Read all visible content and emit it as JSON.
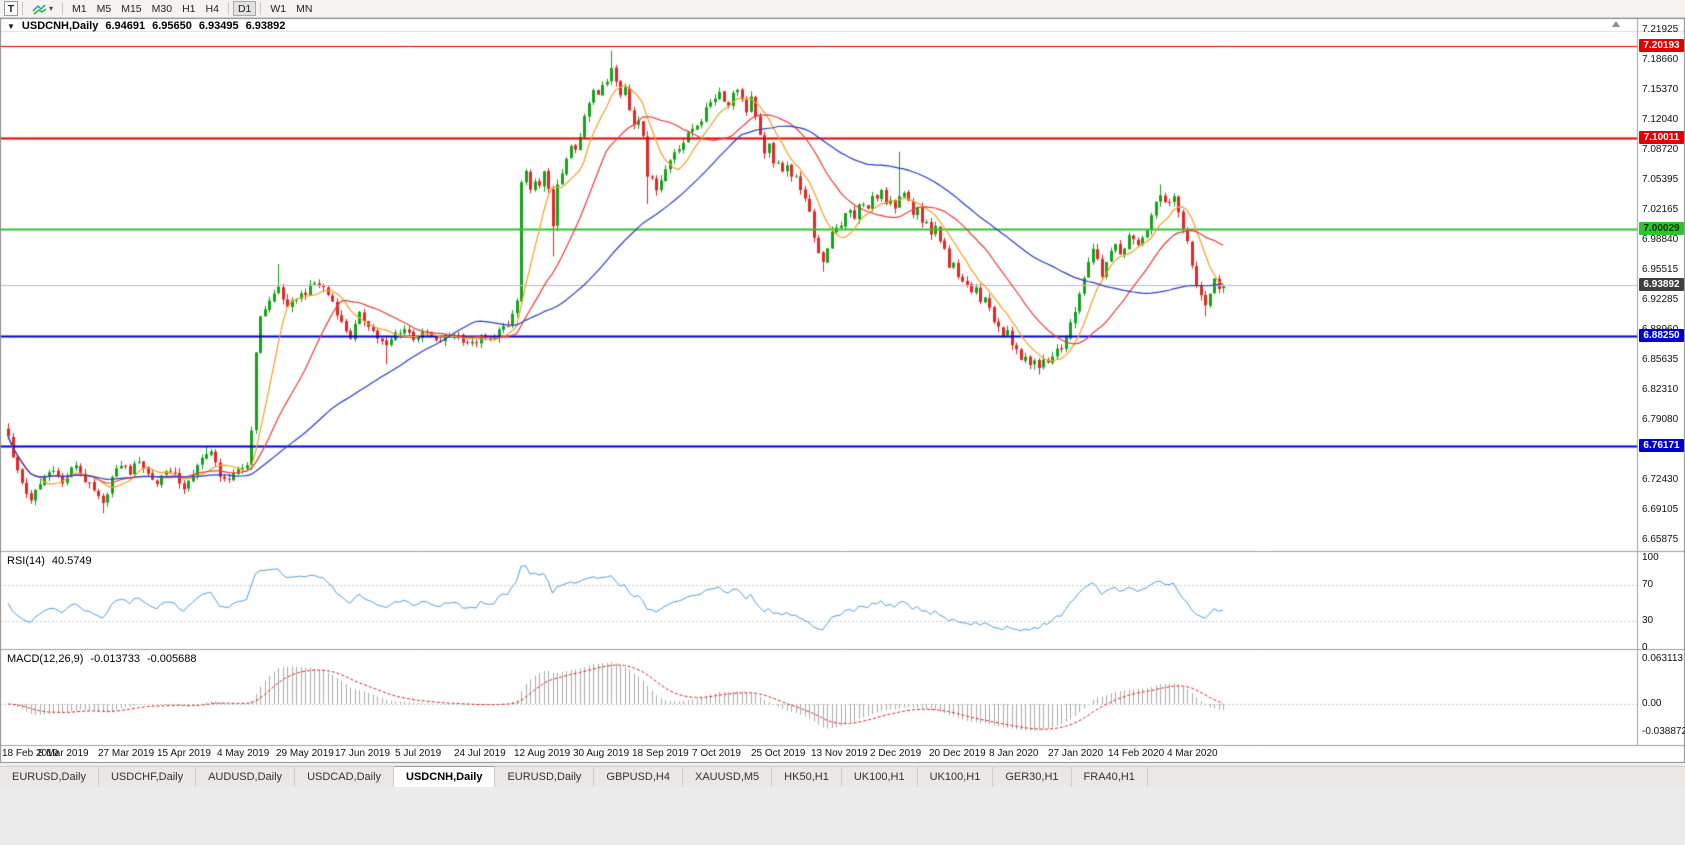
{
  "toolbar": {
    "tool_button_label": "T",
    "timeframes": [
      "M1",
      "M5",
      "M15",
      "M30",
      "H1",
      "H4",
      "D1",
      "W1",
      "MN"
    ],
    "active_timeframe": "D1",
    "group_breaks_after": [
      "H4",
      "D1"
    ]
  },
  "chart": {
    "symbol_period": "USDCNH,Daily",
    "ohlc": {
      "open": "6.94691",
      "high": "6.95650",
      "low": "6.93495",
      "close": "6.93892"
    }
  },
  "tab_bar": {
    "tabs": [
      "EURUSD,Daily",
      "USDCHF,Daily",
      "AUDUSD,Daily",
      "USDCAD,Daily",
      "USDCNH,Daily",
      "EURUSD,Daily",
      "GBPUSD,H4",
      "XAUUSD,M5",
      "HK50,H1",
      "UK100,H1",
      "UK100,H1",
      "GER30,H1",
      "FRA40,H1"
    ],
    "active_index": 4
  },
  "chart_data": {
    "type": "candlestick",
    "symbol": "USDCNH",
    "period": "Daily",
    "bars": 271,
    "last_close": 6.93892,
    "candle_up_color": "#17a21b",
    "candle_down_color": "#e02828",
    "y_axis": {
      "labels": [
        "7.21925",
        "7.18660",
        "7.15370",
        "7.12040",
        "7.08720",
        "7.05395",
        "7.02165",
        "6.98840",
        "6.95515",
        "6.92285",
        "6.88960",
        "6.85635",
        "6.82310",
        "6.79080",
        "6.75755",
        "6.72430",
        "6.69105",
        "6.65875"
      ],
      "top_value": 7.21925,
      "bottom_value": 6.65875
    },
    "x_axis": {
      "labels": [
        "18 Feb 2019",
        "8 Mar 2019",
        "27 Mar 2019",
        "15 Apr 2019",
        "4 May 2019",
        "29 May 2019",
        "17 Jun 2019",
        "5 Jul 2019",
        "24 Jul 2019",
        "12 Aug 2019",
        "30 Aug 2019",
        "18 Sep 2019",
        "7 Oct 2019",
        "25 Oct 2019",
        "13 Nov 2019",
        "2 Dec 2019",
        "20 Dec 2019",
        "8 Jan 2020",
        "27 Jan 2020",
        "14 Feb 2020",
        "4 Mar 2020"
      ]
    },
    "horizontal_levels": [
      {
        "label": "7.20193",
        "price": 7.20193,
        "color": "#e00000",
        "badge_text": "#ffffff",
        "lw": 1
      },
      {
        "label": "7.10011",
        "price": 7.10011,
        "color": "#e00000",
        "badge_text": "#ffffff",
        "lw": 2
      },
      {
        "label": "7.00029",
        "price": 7.00029,
        "color": "#2fc42f",
        "badge_text": "#053305",
        "lw": 2
      },
      {
        "label": "6.88250",
        "price": 6.8825,
        "color": "#0000cc",
        "badge_text": "#ffffff",
        "lw": 2
      },
      {
        "label": "6.76171",
        "price": 6.76171,
        "color": "#0000cc",
        "badge_text": "#ffffff",
        "lw": 2
      }
    ],
    "current_price": {
      "label": "6.93892",
      "price": 6.93892,
      "line_color": "#bdbdbd",
      "badge_bg": "#3f3f3f",
      "badge_text": "#ffffff"
    },
    "moving_averages": [
      {
        "period": 8,
        "color": "#f2a228"
      },
      {
        "period": 20,
        "color": "#e84040"
      },
      {
        "period": 50,
        "color": "#2c3fc0"
      }
    ],
    "rsi": {
      "label": "RSI(14)",
      "value": "40.5749",
      "period": 14,
      "color": "#58a0d8",
      "axis_labels": [
        "100",
        "70",
        "30",
        "0"
      ],
      "axis_values": [
        100,
        70,
        30,
        0
      ],
      "guide_levels": [
        70,
        30
      ]
    },
    "macd": {
      "label": "MACD(12,26,9)",
      "value_main": "-0.013733",
      "value_signal": "-0.005688",
      "fast": 12,
      "slow": 26,
      "signal": 9,
      "hist_color": "#ababab",
      "signal_color": "#d42a2a",
      "axis_labels": [
        {
          "text": "0.063113",
          "value": 0.063113
        },
        {
          "text": "0.00",
          "value": 0
        },
        {
          "text": "-0.038872",
          "value": -0.038872
        }
      ]
    },
    "close_anchors": [
      [
        0,
        6.775
      ],
      [
        1,
        6.748
      ],
      [
        3,
        6.722
      ],
      [
        5,
        6.7
      ],
      [
        6,
        6.712
      ],
      [
        8,
        6.728
      ],
      [
        10,
        6.738
      ],
      [
        12,
        6.72
      ],
      [
        13,
        6.73
      ],
      [
        15,
        6.742
      ],
      [
        17,
        6.724
      ],
      [
        19,
        6.712
      ],
      [
        21,
        6.697
      ],
      [
        23,
        6.727
      ],
      [
        25,
        6.742
      ],
      [
        27,
        6.733
      ],
      [
        29,
        6.747
      ],
      [
        31,
        6.731
      ],
      [
        33,
        6.721
      ],
      [
        35,
        6.737
      ],
      [
        37,
        6.729
      ],
      [
        39,
        6.716
      ],
      [
        41,
        6.728
      ],
      [
        43,
        6.752
      ],
      [
        45,
        6.754
      ],
      [
        47,
        6.731
      ],
      [
        49,
        6.722
      ],
      [
        51,
        6.737
      ],
      [
        53,
        6.741
      ],
      [
        54,
        6.782
      ],
      [
        55,
        6.862
      ],
      [
        56,
        6.906
      ],
      [
        58,
        6.921
      ],
      [
        60,
        6.937
      ],
      [
        62,
        6.912
      ],
      [
        64,
        6.926
      ],
      [
        66,
        6.931
      ],
      [
        68,
        6.941
      ],
      [
        70,
        6.936
      ],
      [
        72,
        6.921
      ],
      [
        74,
        6.897
      ],
      [
        76,
        6.882
      ],
      [
        78,
        6.906
      ],
      [
        80,
        6.896
      ],
      [
        82,
        6.881
      ],
      [
        84,
        6.871
      ],
      [
        86,
        6.886
      ],
      [
        88,
        6.891
      ],
      [
        90,
        6.881
      ],
      [
        93,
        6.886
      ],
      [
        95,
        6.876
      ],
      [
        97,
        6.881
      ],
      [
        99,
        6.886
      ],
      [
        101,
        6.879
      ],
      [
        103,
        6.874
      ],
      [
        105,
        6.881
      ],
      [
        107,
        6.878
      ],
      [
        109,
        6.889
      ],
      [
        111,
        6.893
      ],
      [
        113,
        6.921
      ],
      [
        114,
        7.051
      ],
      [
        115,
        7.061
      ],
      [
        116,
        7.041
      ],
      [
        117,
        7.056
      ],
      [
        118,
        7.046
      ],
      [
        119,
        7.061
      ],
      [
        120,
        7.046
      ],
      [
        121,
        7.006
      ],
      [
        122,
        7.046
      ],
      [
        123,
        7.061
      ],
      [
        124,
        7.076
      ],
      [
        125,
        7.091
      ],
      [
        126,
        7.086
      ],
      [
        127,
        7.101
      ],
      [
        128,
        7.126
      ],
      [
        129,
        7.141
      ],
      [
        130,
        7.156
      ],
      [
        131,
        7.149
      ],
      [
        132,
        7.156
      ],
      [
        133,
        7.163
      ],
      [
        134,
        7.179
      ],
      [
        135,
        7.166
      ],
      [
        136,
        7.151
      ],
      [
        137,
        7.156
      ],
      [
        138,
        7.131
      ],
      [
        139,
        7.116
      ],
      [
        140,
        7.121
      ],
      [
        141,
        7.106
      ],
      [
        142,
        7.061
      ],
      [
        144,
        7.046
      ],
      [
        146,
        7.066
      ],
      [
        148,
        7.086
      ],
      [
        150,
        7.096
      ],
      [
        152,
        7.111
      ],
      [
        154,
        7.121
      ],
      [
        156,
        7.141
      ],
      [
        158,
        7.151
      ],
      [
        160,
        7.136
      ],
      [
        161,
        7.151
      ],
      [
        162,
        7.156
      ],
      [
        163,
        7.141
      ],
      [
        164,
        7.131
      ],
      [
        165,
        7.146
      ],
      [
        166,
        7.121
      ],
      [
        167,
        7.101
      ],
      [
        168,
        7.086
      ],
      [
        169,
        7.091
      ],
      [
        170,
        7.071
      ],
      [
        171,
        7.076
      ],
      [
        172,
        7.066
      ],
      [
        173,
        7.071
      ],
      [
        174,
        7.056
      ],
      [
        175,
        7.061
      ],
      [
        176,
        7.041
      ],
      [
        177,
        7.031
      ],
      [
        178,
        7.021
      ],
      [
        179,
        6.991
      ],
      [
        180,
        6.976
      ],
      [
        181,
        6.966
      ],
      [
        182,
        6.981
      ],
      [
        183,
        6.996
      ],
      [
        184,
        7.001
      ],
      [
        185,
        7.006
      ],
      [
        186,
        7.016
      ],
      [
        187,
        7.021
      ],
      [
        188,
        7.011
      ],
      [
        189,
        7.026
      ],
      [
        190,
        7.031
      ],
      [
        191,
        7.021
      ],
      [
        192,
        7.036
      ],
      [
        193,
        7.031
      ],
      [
        194,
        7.041
      ],
      [
        195,
        7.026
      ],
      [
        196,
        7.031
      ],
      [
        197,
        7.021
      ],
      [
        198,
        7.036
      ],
      [
        199,
        7.041
      ],
      [
        200,
        7.031
      ],
      [
        201,
        7.016
      ],
      [
        202,
        7.021
      ],
      [
        203,
        7.006
      ],
      [
        204,
        7.011
      ],
      [
        205,
        6.996
      ],
      [
        206,
        7.001
      ],
      [
        207,
        6.986
      ],
      [
        208,
        6.976
      ],
      [
        209,
        6.961
      ],
      [
        210,
        6.966
      ],
      [
        211,
        6.951
      ],
      [
        212,
        6.946
      ],
      [
        213,
        6.941
      ],
      [
        214,
        6.931
      ],
      [
        215,
        6.936
      ],
      [
        216,
        6.921
      ],
      [
        217,
        6.926
      ],
      [
        218,
        6.911
      ],
      [
        219,
        6.901
      ],
      [
        220,
        6.891
      ],
      [
        221,
        6.881
      ],
      [
        222,
        6.886
      ],
      [
        223,
        6.871
      ],
      [
        224,
        6.866
      ],
      [
        225,
        6.856
      ],
      [
        226,
        6.861
      ],
      [
        227,
        6.851
      ],
      [
        228,
        6.856
      ],
      [
        229,
        6.846
      ],
      [
        230,
        6.859
      ],
      [
        231,
        6.853
      ],
      [
        232,
        6.861
      ],
      [
        233,
        6.871
      ],
      [
        234,
        6.866
      ],
      [
        235,
        6.881
      ],
      [
        236,
        6.896
      ],
      [
        237,
        6.911
      ],
      [
        238,
        6.931
      ],
      [
        239,
        6.946
      ],
      [
        240,
        6.961
      ],
      [
        241,
        6.976
      ],
      [
        242,
        6.966
      ],
      [
        243,
        6.951
      ],
      [
        244,
        6.961
      ],
      [
        245,
        6.976
      ],
      [
        246,
        6.986
      ],
      [
        247,
        6.971
      ],
      [
        248,
        6.981
      ],
      [
        249,
        6.996
      ],
      [
        250,
        6.991
      ],
      [
        251,
        6.986
      ],
      [
        252,
        6.991
      ],
      [
        253,
        7.001
      ],
      [
        254,
        7.016
      ],
      [
        255,
        7.031
      ],
      [
        256,
        7.041
      ],
      [
        257,
        7.031
      ],
      [
        258,
        7.026
      ],
      [
        259,
        7.036
      ],
      [
        260,
        7.021
      ],
      [
        261,
        7.001
      ],
      [
        262,
        6.986
      ],
      [
        263,
        6.961
      ],
      [
        264,
        6.941
      ],
      [
        265,
        6.926
      ],
      [
        266,
        6.916
      ],
      [
        267,
        6.931
      ],
      [
        268,
        6.946
      ],
      [
        269,
        6.936
      ],
      [
        270,
        6.93892
      ]
    ],
    "wick_overrides": [
      {
        "i": 0,
        "high": 6.787
      },
      {
        "i": 21,
        "low": 6.688
      },
      {
        "i": 44,
        "high": 6.762
      },
      {
        "i": 60,
        "high": 6.962
      },
      {
        "i": 84,
        "low": 6.852
      },
      {
        "i": 121,
        "low": 6.9705
      },
      {
        "i": 134,
        "high": 7.1965
      },
      {
        "i": 142,
        "low": 7.028
      },
      {
        "i": 181,
        "low": 6.9535
      },
      {
        "i": 198,
        "high": 7.0855
      },
      {
        "i": 229,
        "low": 6.8405
      },
      {
        "i": 256,
        "high": 7.0495
      },
      {
        "i": 266,
        "low": 6.9045
      }
    ]
  }
}
